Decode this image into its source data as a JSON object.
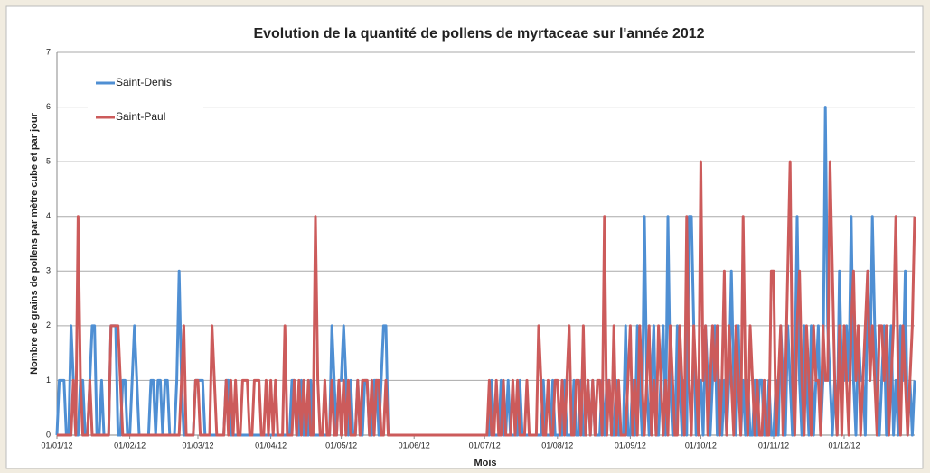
{
  "chart_data": {
    "type": "line",
    "title": "Evolution de la quantité de pollens de myrtaceae sur l'année 2012",
    "x_label": "Mois",
    "y_label": "Nombre de grains de pollens par mètre cube et par jour",
    "legend": "top-left",
    "grid": true,
    "ylim": [
      0,
      7
    ],
    "yticks": [
      0,
      1,
      2,
      3,
      4,
      5,
      6,
      7
    ],
    "categories": [
      "01/01/12",
      null,
      null,
      null,
      null,
      null,
      null,
      null,
      null,
      null,
      null,
      null,
      null,
      null,
      null,
      null,
      null,
      null,
      null,
      null,
      null,
      null,
      null,
      null,
      null,
      null,
      null,
      null,
      null,
      null,
      null,
      "01/02/12",
      null,
      null,
      null,
      null,
      null,
      null,
      null,
      null,
      null,
      null,
      null,
      null,
      null,
      null,
      null,
      null,
      null,
      null,
      null,
      null,
      null,
      null,
      null,
      null,
      null,
      null,
      null,
      null,
      "01/03/12",
      null,
      null,
      null,
      null,
      null,
      null,
      null,
      null,
      null,
      null,
      null,
      null,
      null,
      null,
      null,
      null,
      null,
      null,
      null,
      null,
      null,
      null,
      null,
      null,
      null,
      null,
      null,
      null,
      null,
      null,
      "01/04/12",
      null,
      null,
      null,
      null,
      null,
      null,
      null,
      null,
      null,
      null,
      null,
      null,
      null,
      null,
      null,
      null,
      null,
      null,
      null,
      null,
      null,
      null,
      null,
      null,
      null,
      null,
      null,
      null,
      null,
      "01/05/12",
      null,
      null,
      null,
      null,
      null,
      null,
      null,
      null,
      null,
      null,
      null,
      null,
      null,
      null,
      null,
      null,
      null,
      null,
      null,
      null,
      null,
      null,
      null,
      null,
      null,
      null,
      null,
      null,
      null,
      null,
      "01/06/12",
      null,
      null,
      null,
      null,
      null,
      null,
      null,
      null,
      null,
      null,
      null,
      null,
      null,
      null,
      null,
      null,
      null,
      null,
      null,
      null,
      null,
      null,
      null,
      null,
      null,
      null,
      null,
      null,
      null,
      "01/07/12",
      null,
      null,
      null,
      null,
      null,
      null,
      null,
      null,
      null,
      null,
      null,
      null,
      null,
      null,
      null,
      null,
      null,
      null,
      null,
      null,
      null,
      null,
      null,
      null,
      null,
      null,
      null,
      null,
      null,
      null,
      "01/08/12",
      null,
      null,
      null,
      null,
      null,
      null,
      null,
      null,
      null,
      null,
      null,
      null,
      null,
      null,
      null,
      null,
      null,
      null,
      null,
      null,
      null,
      null,
      null,
      null,
      null,
      null,
      null,
      null,
      null,
      null,
      "01/09/12",
      null,
      null,
      null,
      null,
      null,
      null,
      null,
      null,
      null,
      null,
      null,
      null,
      null,
      null,
      null,
      null,
      null,
      null,
      null,
      null,
      null,
      null,
      null,
      null,
      null,
      null,
      null,
      null,
      null,
      "01/10/12",
      null,
      null,
      null,
      null,
      null,
      null,
      null,
      null,
      null,
      null,
      null,
      null,
      null,
      null,
      null,
      null,
      null,
      null,
      null,
      null,
      null,
      null,
      null,
      null,
      null,
      null,
      null,
      null,
      null,
      null,
      "01/11/12",
      null,
      null,
      null,
      null,
      null,
      null,
      null,
      null,
      null,
      null,
      null,
      null,
      null,
      null,
      null,
      null,
      null,
      null,
      null,
      null,
      null,
      null,
      null,
      null,
      null,
      null,
      null,
      null,
      null,
      "01/12/12",
      null,
      null,
      null,
      null,
      null,
      null,
      null,
      null,
      null,
      null,
      null,
      null,
      null,
      null,
      null,
      null,
      null,
      null,
      null,
      null,
      null,
      null,
      null,
      null,
      null,
      null,
      null,
      null,
      null,
      null
    ],
    "series": [
      {
        "name": "Saint-Denis",
        "color": "#4f8fd3",
        "values": [
          0,
          1,
          1,
          1,
          0,
          0,
          2,
          1,
          0,
          0,
          1,
          1,
          0,
          0,
          1,
          2,
          2,
          0,
          0,
          1,
          0,
          0,
          0,
          2,
          2,
          2,
          0,
          0,
          1,
          1,
          0,
          0,
          1,
          2,
          1,
          0,
          0,
          0,
          0,
          0,
          1,
          1,
          0,
          1,
          1,
          0,
          1,
          1,
          0,
          0,
          0,
          1,
          3,
          1,
          0,
          0,
          0,
          0,
          0,
          1,
          1,
          1,
          1,
          0,
          0,
          0,
          0,
          0,
          0,
          0,
          0,
          0,
          1,
          1,
          0,
          0,
          0,
          0,
          0,
          0,
          0,
          0,
          0,
          0,
          0,
          0,
          0,
          0,
          0,
          0,
          0,
          0,
          0,
          0,
          0,
          0,
          0,
          0,
          0,
          0,
          1,
          1,
          0,
          0,
          1,
          0,
          0,
          0,
          1,
          0,
          0,
          0,
          0,
          0,
          0,
          0,
          0,
          2,
          1,
          0,
          1,
          1,
          2,
          1,
          0,
          1,
          0,
          0,
          1,
          0,
          0,
          1,
          1,
          0,
          0,
          1,
          1,
          0,
          1,
          2,
          2,
          0,
          0,
          0,
          0,
          0,
          0,
          0,
          0,
          0,
          0,
          0,
          0,
          0,
          0,
          0,
          0,
          0,
          0,
          0,
          0,
          0,
          0,
          0,
          0,
          0,
          0,
          0,
          0,
          0,
          0,
          0,
          0,
          0,
          0,
          0,
          0,
          0,
          0,
          0,
          0,
          0,
          0,
          0,
          0,
          1,
          0,
          0,
          0,
          1,
          0,
          0,
          1,
          0,
          0,
          0,
          0,
          1,
          0,
          0,
          0,
          0,
          0,
          0,
          0,
          0,
          0,
          1,
          0,
          0,
          0,
          1,
          0,
          0,
          0,
          0,
          1,
          0,
          0,
          0,
          1,
          0,
          0,
          1,
          0,
          0,
          1,
          0,
          1,
          0,
          0,
          0,
          1,
          0,
          1,
          1,
          0,
          0,
          1,
          0,
          0,
          0,
          2,
          0,
          0,
          1,
          0,
          2,
          1,
          0,
          4,
          1,
          0,
          1,
          2,
          0,
          0,
          1,
          2,
          0,
          4,
          1,
          0,
          0,
          2,
          1,
          0,
          1,
          0,
          4,
          4,
          2,
          0,
          1,
          1,
          0,
          2,
          1,
          0,
          1,
          2,
          0,
          1,
          0,
          1,
          0,
          1,
          3,
          1,
          0,
          2,
          0,
          1,
          0,
          1,
          0,
          0,
          1,
          0,
          1,
          1,
          0,
          0,
          1,
          0,
          0,
          1,
          0,
          2,
          1,
          0,
          2,
          1,
          0,
          1,
          4,
          1,
          0,
          2,
          1,
          0,
          2,
          0,
          1,
          2,
          0,
          1,
          6,
          2,
          1,
          0,
          1,
          0,
          3,
          1,
          1,
          2,
          1,
          4,
          1,
          0,
          2,
          1,
          1,
          0,
          3,
          1,
          4,
          2,
          1,
          0,
          1,
          2,
          0,
          1,
          2,
          0,
          1,
          0,
          2,
          1,
          3,
          0,
          1,
          0,
          1
        ]
      },
      {
        "name": "Saint-Paul",
        "color": "#cc5b5b",
        "values": [
          0,
          0,
          0,
          0,
          0,
          0,
          0,
          1,
          0,
          4,
          1,
          0,
          0,
          0,
          1,
          0,
          0,
          0,
          0,
          0,
          0,
          0,
          0,
          2,
          2,
          2,
          2,
          1,
          0,
          0,
          0,
          0,
          0,
          0,
          0,
          0,
          0,
          0,
          0,
          0,
          0,
          0,
          0,
          0,
          0,
          0,
          0,
          0,
          0,
          0,
          0,
          0,
          0,
          1,
          2,
          0,
          0,
          0,
          0,
          1,
          1,
          0,
          0,
          0,
          0,
          0,
          2,
          1,
          0,
          0,
          0,
          0,
          1,
          0,
          1,
          0,
          1,
          0,
          0,
          1,
          1,
          1,
          0,
          0,
          1,
          1,
          1,
          0,
          0,
          1,
          0,
          1,
          0,
          1,
          0,
          0,
          0,
          2,
          0,
          0,
          0,
          1,
          0,
          1,
          0,
          1,
          0,
          1,
          0,
          0,
          4,
          1,
          0,
          0,
          1,
          0,
          0,
          1,
          0,
          0,
          1,
          0,
          1,
          0,
          1,
          0,
          0,
          0,
          1,
          0,
          1,
          1,
          1,
          0,
          1,
          0,
          1,
          1,
          0,
          0,
          1,
          0,
          0,
          0,
          0,
          0,
          0,
          0,
          0,
          0,
          0,
          0,
          0,
          0,
          0,
          0,
          0,
          0,
          0,
          0,
          0,
          0,
          0,
          0,
          0,
          0,
          0,
          0,
          0,
          0,
          0,
          0,
          0,
          0,
          0,
          0,
          0,
          0,
          0,
          0,
          0,
          0,
          0,
          0,
          1,
          0,
          0,
          1,
          0,
          0,
          1,
          0,
          0,
          0,
          1,
          0,
          1,
          0,
          0,
          0,
          1,
          0,
          0,
          0,
          0,
          2,
          1,
          0,
          0,
          1,
          0,
          0,
          1,
          1,
          0,
          1,
          0,
          1,
          2,
          0,
          0,
          1,
          1,
          0,
          2,
          0,
          1,
          0,
          1,
          0,
          1,
          1,
          0,
          4,
          0,
          1,
          0,
          2,
          0,
          1,
          0,
          0,
          0,
          1,
          2,
          0,
          1,
          0,
          2,
          1,
          0,
          1,
          2,
          0,
          1,
          0,
          2,
          1,
          0,
          1,
          0,
          2,
          1,
          0,
          0,
          2,
          1,
          0,
          4,
          1,
          0,
          2,
          1,
          0,
          5,
          1,
          2,
          0,
          1,
          2,
          1,
          2,
          0,
          1,
          3,
          0,
          2,
          1,
          0,
          2,
          1,
          0,
          4,
          1,
          0,
          2,
          1,
          0,
          1,
          0,
          0,
          1,
          0,
          0,
          3,
          3,
          0,
          1,
          2,
          0,
          1,
          3,
          5,
          1,
          0,
          2,
          3,
          1,
          0,
          2,
          1,
          0,
          2,
          1,
          1,
          0,
          2,
          1,
          1,
          5,
          3,
          1,
          0,
          2,
          0,
          2,
          1,
          0,
          2,
          3,
          1,
          2,
          0,
          1,
          2,
          3,
          1,
          2,
          1,
          0,
          2,
          2,
          1,
          2,
          0,
          1,
          2,
          4,
          1,
          0,
          2,
          1,
          0,
          1,
          2,
          4
        ]
      }
    ]
  }
}
